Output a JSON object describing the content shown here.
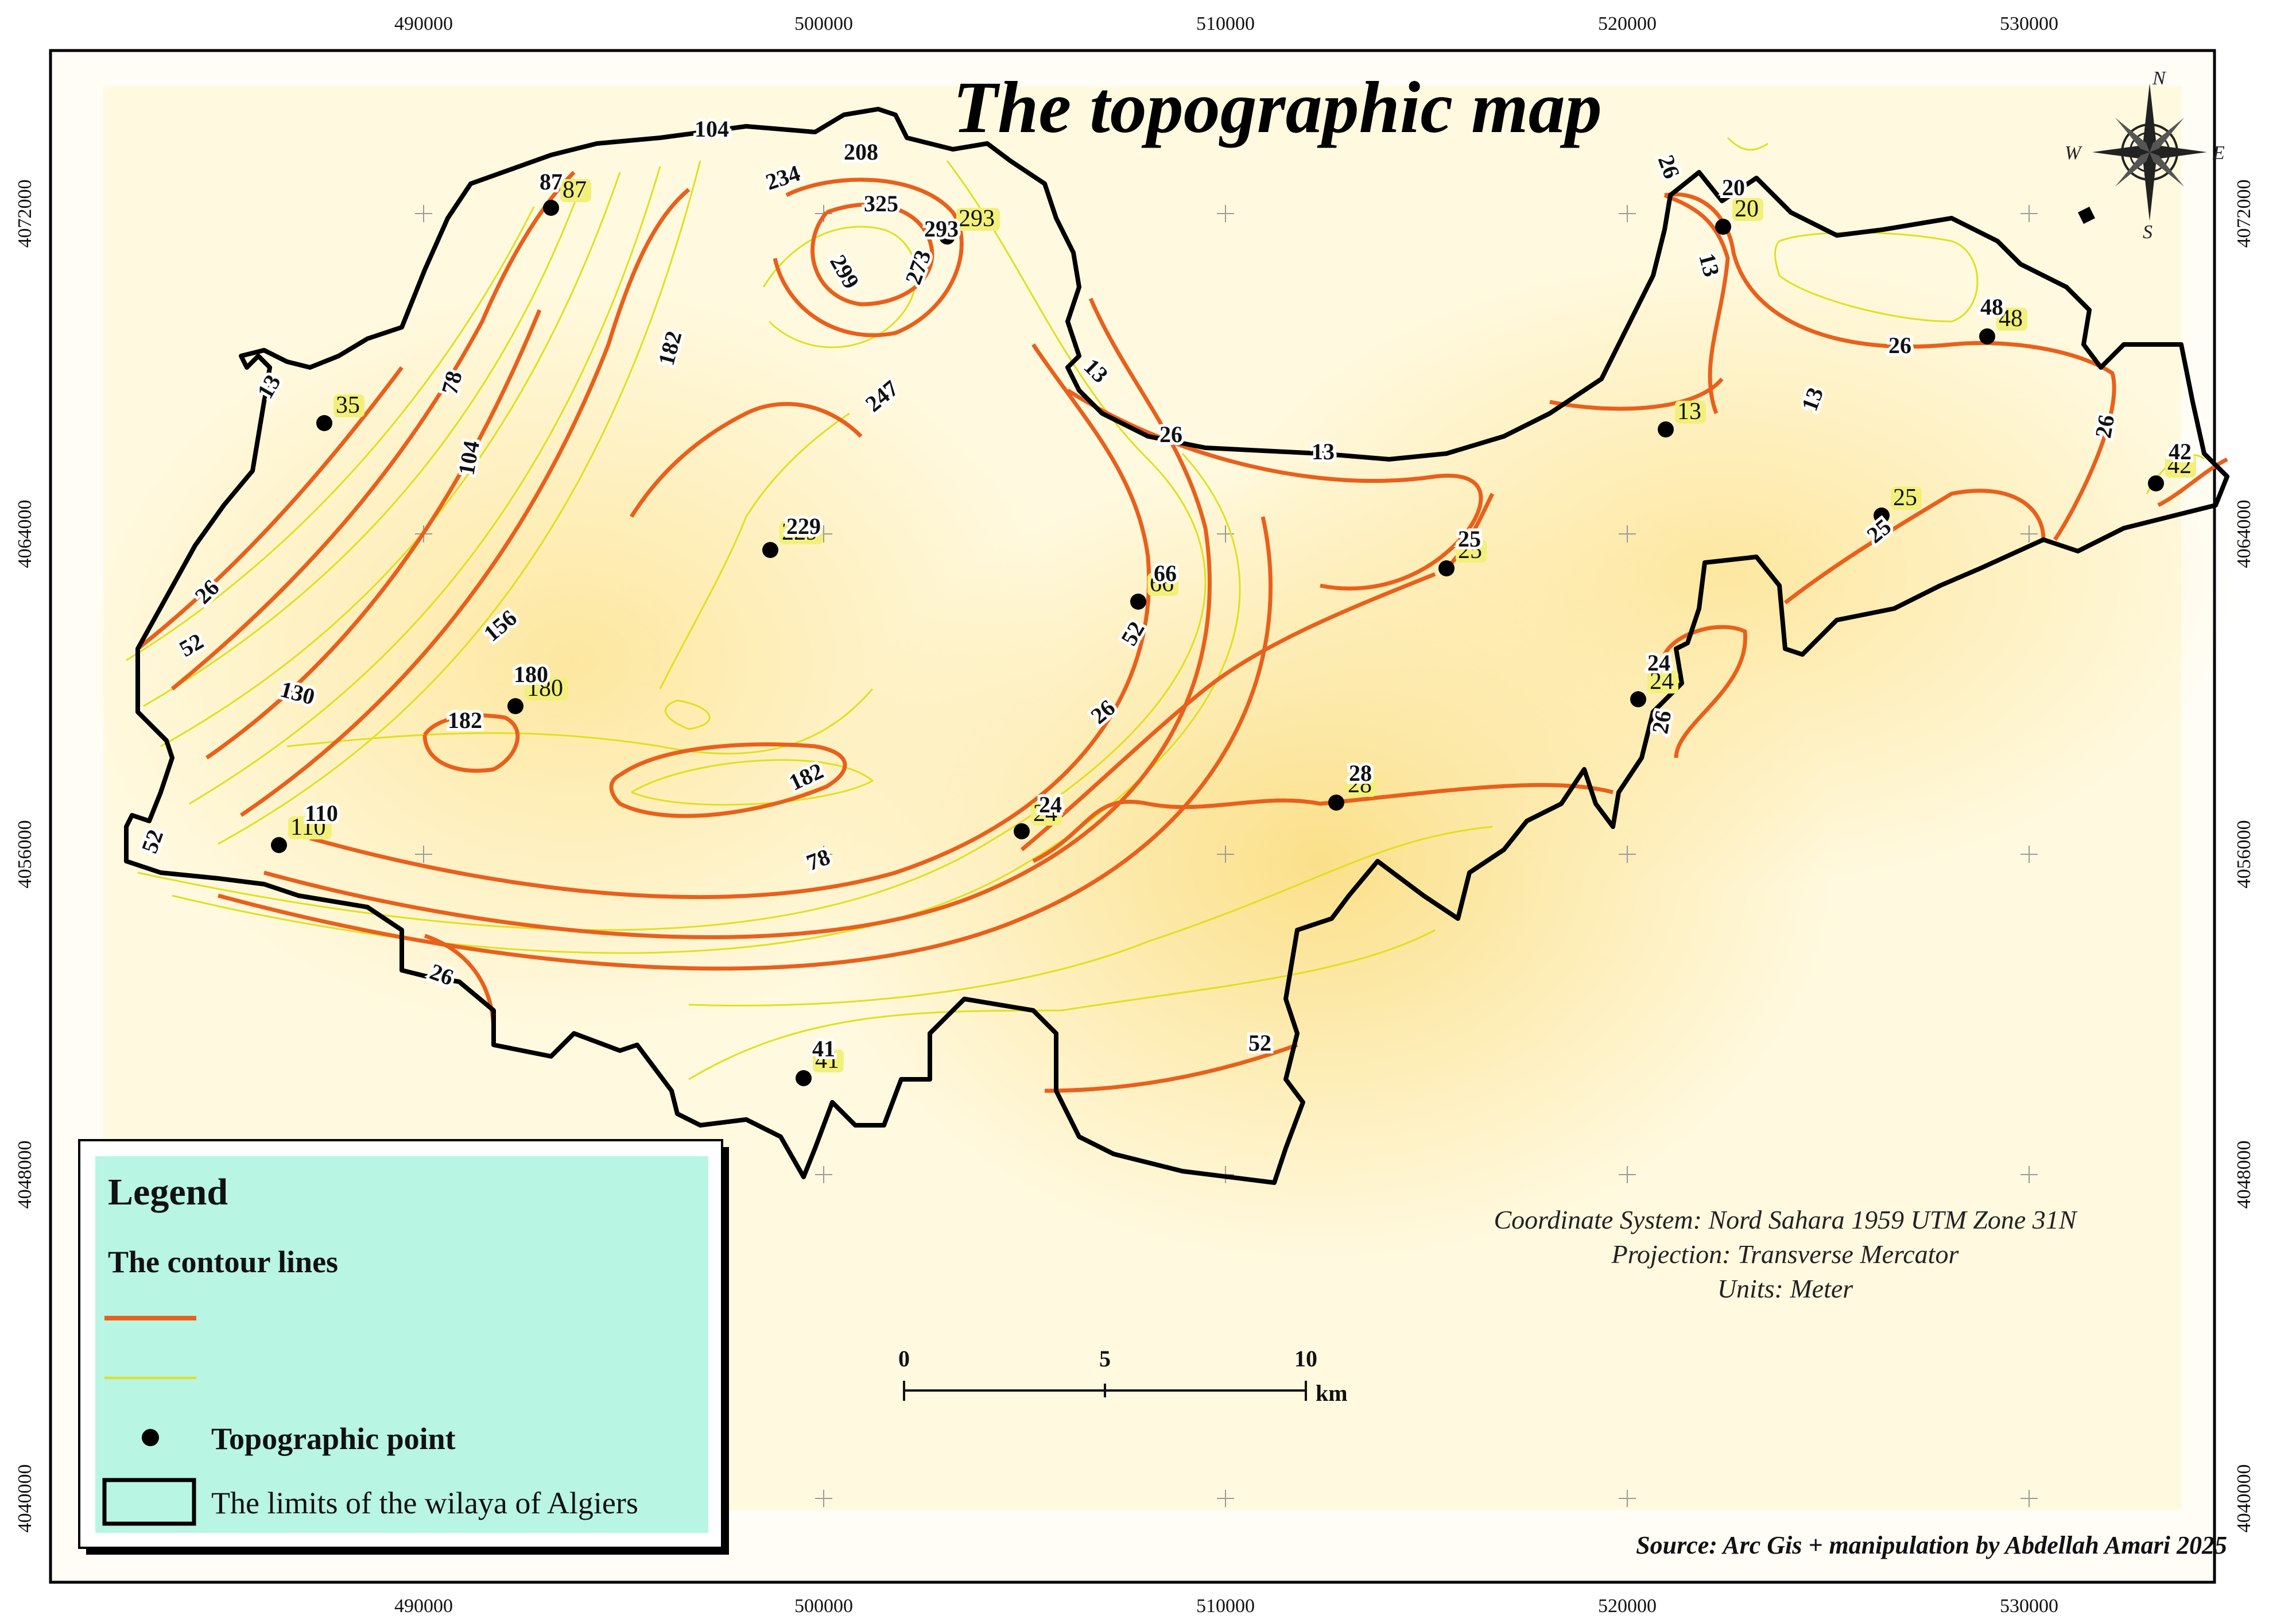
{
  "map": {
    "title": "The topographic map",
    "info_lines": [
      "Coordinate System: Nord Sahara 1959 UTM Zone 31N",
      "Projection: Transverse Mercator",
      "Units: Meter"
    ],
    "source": "Source: Arc Gis + manipulation by Abdellah Amari 2025",
    "x_ticks": [
      "490000",
      "500000",
      "510000",
      "520000",
      "530000"
    ],
    "y_ticks": [
      "4072000",
      "4064000",
      "4056000",
      "4048000",
      "4040000"
    ],
    "colors": {
      "major_contour": "#e8601c",
      "minor_contour": "#e0e020",
      "boundary": "#000000",
      "legend_bg": "#b8f5e2",
      "relief_base": "#fdeeb0"
    },
    "compass": {
      "n": "N",
      "s": "S",
      "e": "E",
      "w": "W"
    },
    "scale_bar": {
      "ticks": [
        "0",
        "5",
        "10"
      ],
      "unit": "km"
    },
    "contour_labels": [
      "104",
      "87",
      "208",
      "234",
      "325",
      "293",
      "299",
      "273",
      "182",
      "247",
      "78",
      "104",
      "13",
      "229",
      "26",
      "52",
      "156",
      "130",
      "180",
      "182",
      "182",
      "110",
      "52",
      "78",
      "66",
      "52",
      "26",
      "24",
      "28",
      "13",
      "26",
      "25",
      "13",
      "26",
      "20",
      "48",
      "26",
      "13",
      "25",
      "26",
      "42",
      "24",
      "26",
      "26",
      "52",
      "41",
      "13"
    ],
    "topographic_points": [
      "87",
      "35",
      "293",
      "229",
      "180",
      "110",
      "66",
      "24",
      "28",
      "25",
      "41",
      "13",
      "20",
      "48",
      "25",
      "42",
      "24"
    ]
  },
  "legend": {
    "title": "Legend",
    "contour_heading": "The contour lines",
    "point_label": "Topographic point",
    "limits_label": "The limits of the wilaya of Algiers"
  }
}
